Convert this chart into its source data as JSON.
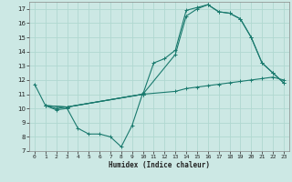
{
  "xlabel": "Humidex (Indice chaleur)",
  "xlim": [
    -0.5,
    23.5
  ],
  "ylim": [
    7,
    17.5
  ],
  "xticks": [
    0,
    1,
    2,
    3,
    4,
    5,
    6,
    7,
    8,
    9,
    10,
    11,
    12,
    13,
    14,
    15,
    16,
    17,
    18,
    19,
    20,
    21,
    22,
    23
  ],
  "yticks": [
    7,
    8,
    9,
    10,
    11,
    12,
    13,
    14,
    15,
    16,
    17
  ],
  "bg_color": "#cce8e4",
  "grid_color": "#b0d8d0",
  "line_color": "#1a7a6e",
  "curves": [
    {
      "x": [
        0,
        1,
        2,
        3,
        4,
        5,
        6,
        7,
        8,
        9,
        10
      ],
      "y": [
        11.7,
        10.2,
        9.9,
        10.0,
        8.6,
        8.2,
        8.2,
        8.0,
        7.3,
        8.8,
        11.1
      ]
    },
    {
      "x": [
        1,
        2,
        3,
        10,
        11,
        12,
        13,
        14,
        15,
        16,
        17,
        18,
        19,
        20,
        21,
        22,
        23
      ],
      "y": [
        10.2,
        10.0,
        10.1,
        11.0,
        13.2,
        13.5,
        14.1,
        16.9,
        17.1,
        17.3,
        16.8,
        16.7,
        16.3,
        15.0,
        13.2,
        12.5,
        11.8
      ]
    },
    {
      "x": [
        1,
        3,
        10,
        13,
        14,
        15,
        16,
        17,
        18,
        19,
        20,
        21,
        22,
        23
      ],
      "y": [
        10.2,
        10.1,
        11.0,
        13.8,
        16.5,
        17.0,
        17.3,
        16.8,
        16.7,
        16.3,
        15.0,
        13.2,
        12.5,
        11.8
      ]
    },
    {
      "x": [
        1,
        3,
        10,
        13,
        14,
        15,
        16,
        17,
        18,
        19,
        20,
        21,
        22,
        23
      ],
      "y": [
        10.2,
        10.1,
        11.0,
        11.2,
        11.4,
        11.5,
        11.6,
        11.7,
        11.8,
        11.9,
        12.0,
        12.1,
        12.2,
        12.0
      ]
    }
  ]
}
